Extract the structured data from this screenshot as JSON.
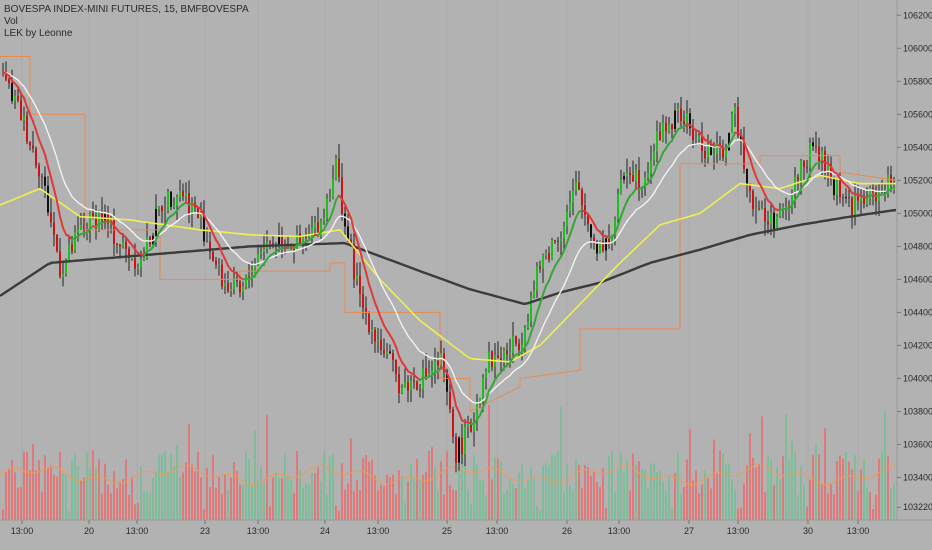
{
  "legend": {
    "symbol_line": "BOVESPA INDEX-MINI FUTURES, 15, BMFBOVESPA",
    "vol_label": "Vol",
    "indicator_label": "LEK by Leonne"
  },
  "colors": {
    "background": "#b2b2b2",
    "bull_candle": "#1fbf1f",
    "bear_candle": "#cc1414",
    "neutral_candle": "#111111",
    "ema_fast_up": "#3aa53a",
    "ema_fast_down": "#e0393a",
    "ema_white": "#f2f2f2",
    "ema_yellow": "#f0ef50",
    "sma_long": "#3c3c3c",
    "step_line": "#e88a50",
    "vol_up": "#7dbd99",
    "vol_down": "#e07a7a",
    "vol_ma": "#f09a55"
  },
  "chart_data": {
    "type": "candlestick",
    "title": "BOVESPA INDEX-MINI FUTURES, 15, BMFBOVESPA",
    "ylim": [
      103100,
      106250
    ],
    "y_ticks": [
      "106200.0",
      "106000.0",
      "105800.0",
      "105600.0",
      "105400.0",
      "105200.0",
      "105000.0",
      "104800.0",
      "104600.0",
      "104400.0",
      "104200.0",
      "104000.0",
      "103800.0",
      "103600.0",
      "103400.0",
      "103220.0"
    ],
    "x_ticks": [
      "13:00",
      "20",
      "13:00",
      "23",
      "13:00",
      "24",
      "13:00",
      "25",
      "13:00",
      "26",
      "13:00",
      "27",
      "13:00",
      "30",
      "13:00"
    ],
    "price_path": [
      [
        0,
        105850
      ],
      [
        20,
        105600
      ],
      [
        40,
        105250
      ],
      [
        60,
        104650
      ],
      [
        80,
        104900
      ],
      [
        100,
        105000
      ],
      [
        120,
        104800
      ],
      [
        140,
        104700
      ],
      [
        160,
        105050
      ],
      [
        180,
        105150
      ],
      [
        200,
        104950
      ],
      [
        220,
        104600
      ],
      [
        240,
        104500
      ],
      [
        260,
        104800
      ],
      [
        280,
        104850
      ],
      [
        300,
        104800
      ],
      [
        320,
        104950
      ],
      [
        335,
        105300
      ],
      [
        345,
        104900
      ],
      [
        360,
        104450
      ],
      [
        380,
        104200
      ],
      [
        400,
        103950
      ],
      [
        420,
        104000
      ],
      [
        440,
        104100
      ],
      [
        455,
        103550
      ],
      [
        470,
        103700
      ],
      [
        485,
        104100
      ],
      [
        505,
        104150
      ],
      [
        520,
        104250
      ],
      [
        540,
        104700
      ],
      [
        560,
        104900
      ],
      [
        575,
        105150
      ],
      [
        595,
        104800
      ],
      [
        610,
        104850
      ],
      [
        625,
        105300
      ],
      [
        640,
        105200
      ],
      [
        660,
        105500
      ],
      [
        680,
        105600
      ],
      [
        700,
        105400
      ],
      [
        720,
        105350
      ],
      [
        735,
        105600
      ],
      [
        750,
        105100
      ],
      [
        765,
        104950
      ],
      [
        785,
        105000
      ],
      [
        800,
        105300
      ],
      [
        815,
        105400
      ],
      [
        830,
        105200
      ],
      [
        850,
        105050
      ],
      [
        870,
        105100
      ],
      [
        895,
        105200
      ]
    ],
    "sma_long": [
      [
        0,
        104500
      ],
      [
        50,
        104700
      ],
      [
        150,
        104750
      ],
      [
        250,
        104800
      ],
      [
        345,
        104820
      ],
      [
        420,
        104650
      ],
      [
        470,
        104540
      ],
      [
        525,
        104450
      ],
      [
        560,
        104520
      ],
      [
        600,
        104580
      ],
      [
        650,
        104700
      ],
      [
        700,
        104780
      ],
      [
        750,
        104870
      ],
      [
        800,
        104930
      ],
      [
        850,
        104980
      ],
      [
        895,
        105020
      ]
    ],
    "ema_yellow": [
      [
        0,
        105050
      ],
      [
        40,
        105150
      ],
      [
        80,
        104980
      ],
      [
        130,
        104960
      ],
      [
        200,
        104900
      ],
      [
        250,
        104870
      ],
      [
        300,
        104860
      ],
      [
        340,
        104900
      ],
      [
        380,
        104600
      ],
      [
        420,
        104350
      ],
      [
        470,
        104120
      ],
      [
        510,
        104100
      ],
      [
        540,
        104200
      ],
      [
        580,
        104450
      ],
      [
        620,
        104700
      ],
      [
        660,
        104930
      ],
      [
        700,
        105000
      ],
      [
        740,
        105180
      ],
      [
        780,
        105150
      ],
      [
        820,
        105230
      ],
      [
        860,
        105180
      ],
      [
        895,
        105180
      ]
    ],
    "step_line": [
      [
        0,
        105950
      ],
      [
        30,
        105950
      ],
      [
        30,
        105600
      ],
      [
        85,
        105600
      ],
      [
        85,
        104900
      ],
      [
        160,
        104900
      ],
      [
        160,
        104600
      ],
      [
        240,
        104600
      ],
      [
        240,
        104650
      ],
      [
        330,
        104650
      ],
      [
        330,
        104700
      ],
      [
        345,
        104700
      ],
      [
        345,
        104400
      ],
      [
        440,
        104400
      ],
      [
        440,
        104000
      ],
      [
        470,
        104000
      ],
      [
        470,
        103800
      ],
      [
        520,
        103950
      ],
      [
        520,
        104000
      ],
      [
        580,
        104050
      ],
      [
        580,
        104300
      ],
      [
        680,
        104300
      ],
      [
        680,
        105300
      ],
      [
        760,
        105300
      ],
      [
        760,
        105350
      ],
      [
        840,
        105350
      ],
      [
        840,
        105250
      ],
      [
        895,
        105200
      ]
    ]
  }
}
